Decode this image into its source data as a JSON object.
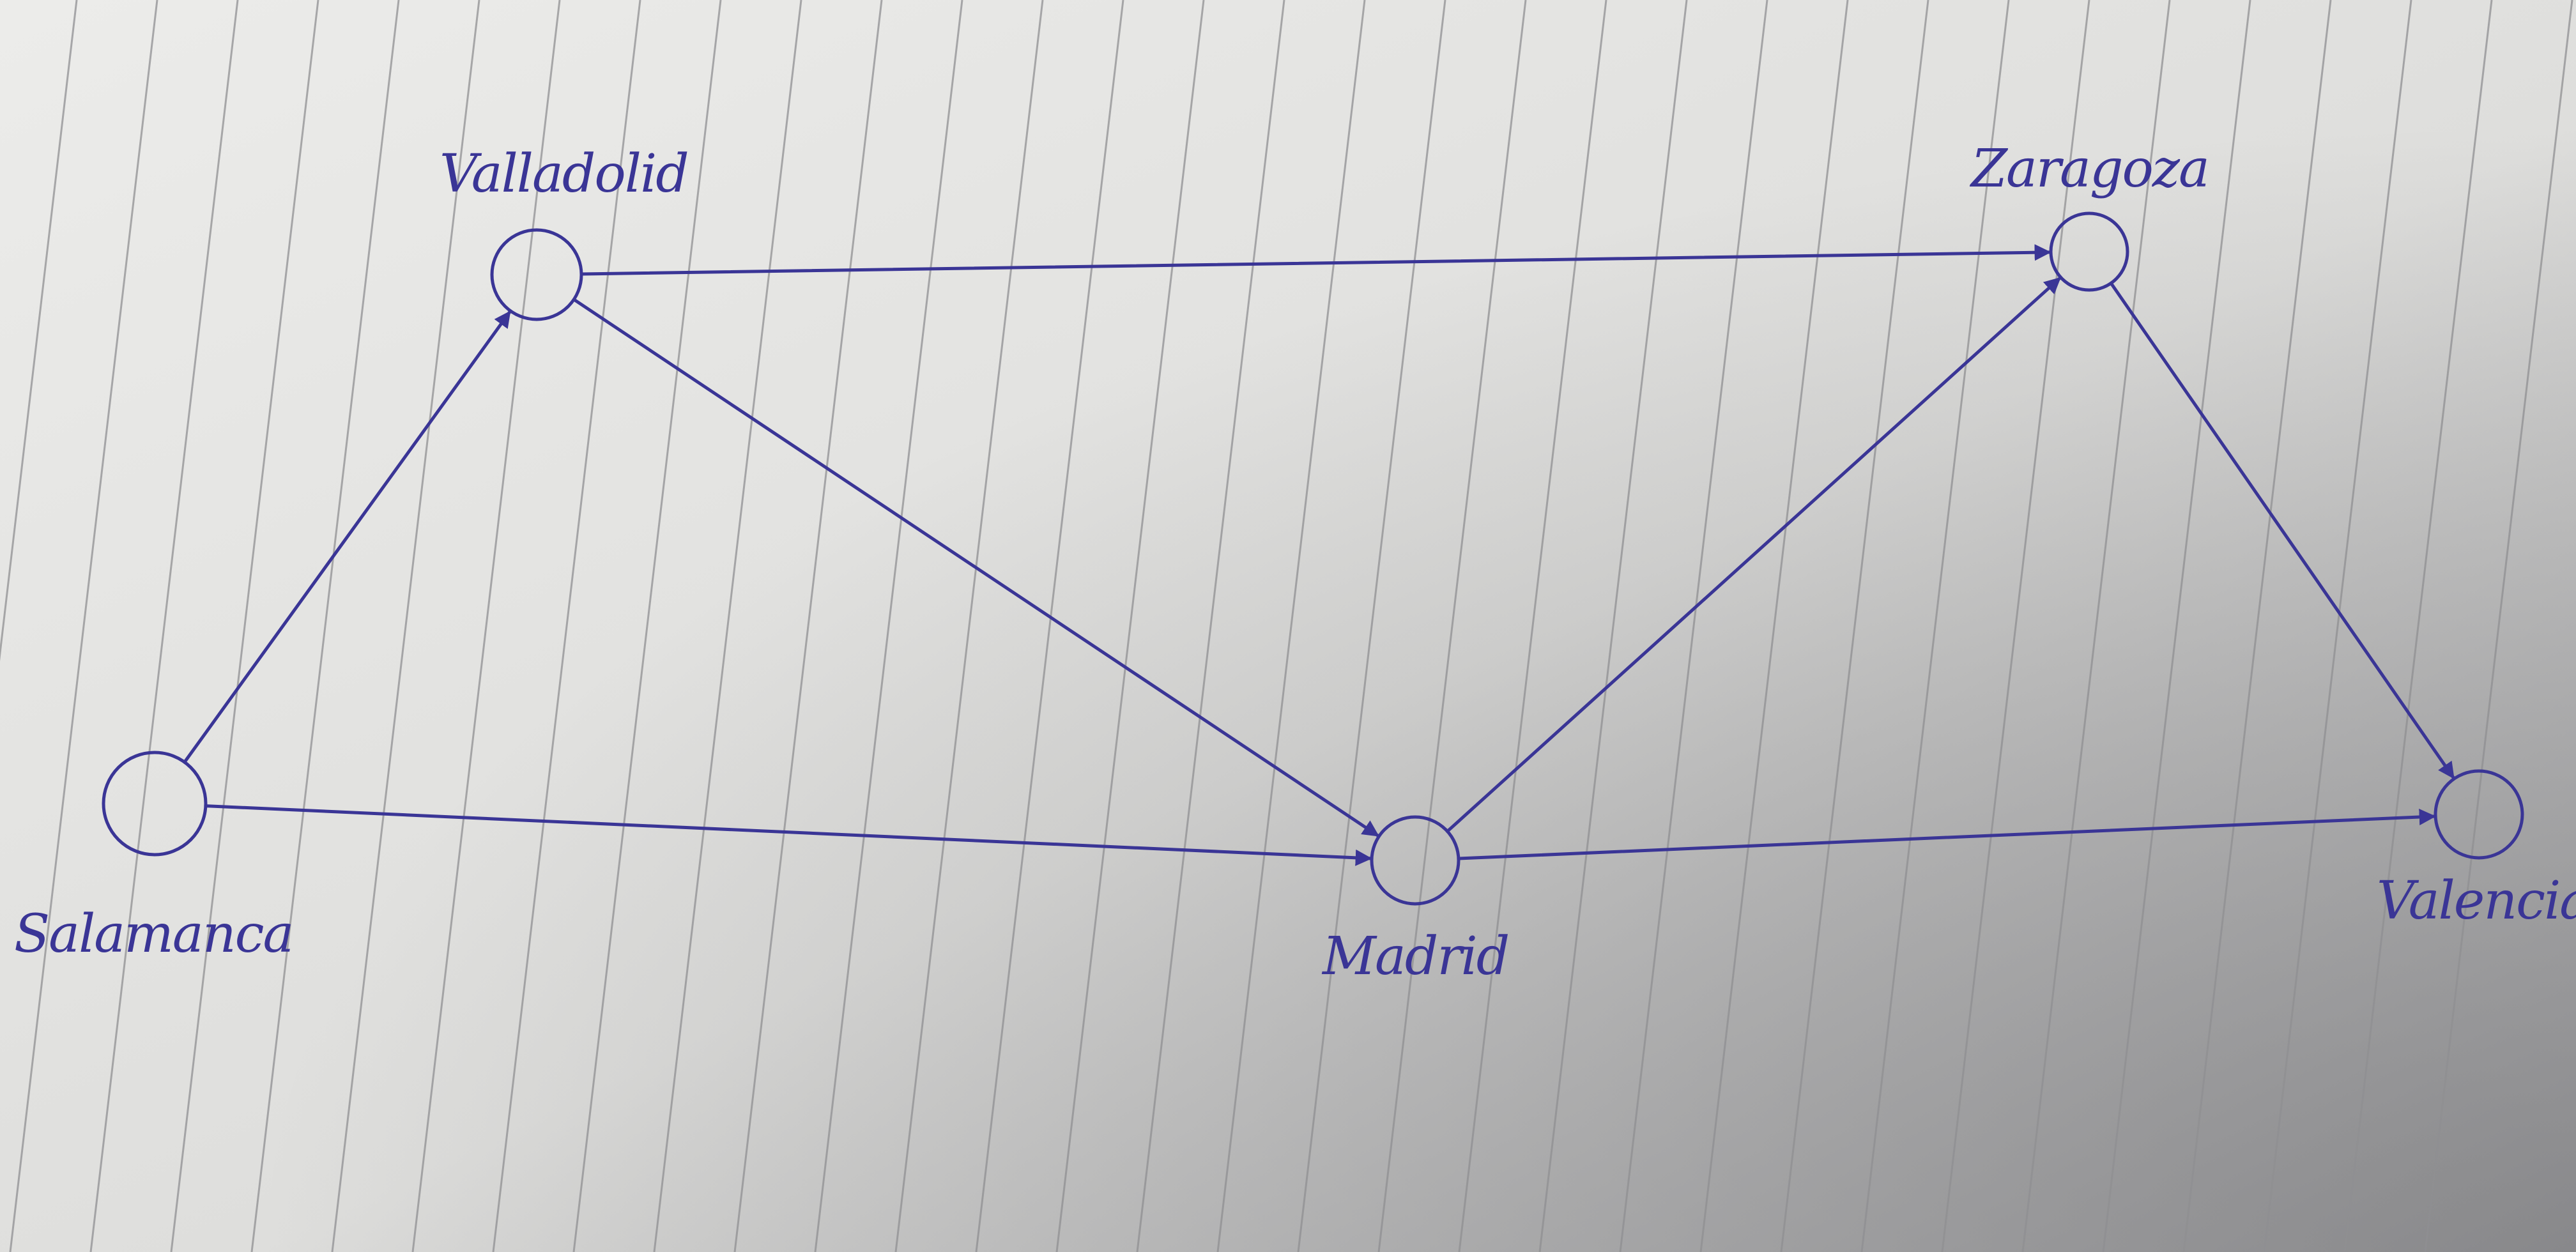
{
  "diagram": {
    "type": "directed-graph",
    "ink_color": "#3a3596",
    "paper_color": "#e6e6e3",
    "rule_color": "#8f8f91",
    "nodes": [
      {
        "id": "salamanca",
        "label": "Salamanca"
      },
      {
        "id": "valladolid",
        "label": "Valladolid"
      },
      {
        "id": "madrid",
        "label": "Madrid"
      },
      {
        "id": "zaragoza",
        "label": "Zaragoza"
      },
      {
        "id": "valencia",
        "label": "Valencia"
      }
    ],
    "edges": [
      {
        "from": "salamanca",
        "to": "valladolid"
      },
      {
        "from": "salamanca",
        "to": "madrid"
      },
      {
        "from": "valladolid",
        "to": "madrid"
      },
      {
        "from": "valladolid",
        "to": "zaragoza"
      },
      {
        "from": "madrid",
        "to": "zaragoza"
      },
      {
        "from": "madrid",
        "to": "valencia"
      },
      {
        "from": "zaragoza",
        "to": "valencia"
      }
    ]
  }
}
